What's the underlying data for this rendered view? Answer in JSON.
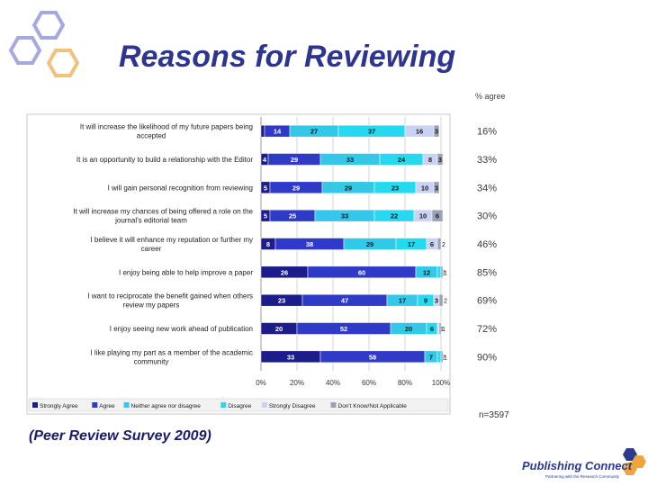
{
  "slide": {
    "title": "Reasons for Reviewing",
    "source": "(Peer Review Survey 2009)",
    "logo_name": "Publishing Connect",
    "logo_tagline": "Partnering with the Research Community"
  },
  "chart_data": {
    "type": "stacked-bar-horizontal",
    "title": "Reasons for Reviewing",
    "agree_header": "% agree",
    "sample_note": "n=3597",
    "x_ticks": [
      "0%",
      "20%",
      "40%",
      "60%",
      "80%",
      "100%"
    ],
    "categories": [
      [
        "It will increase the likelihood of my future papers being",
        "accepted"
      ],
      [
        "It is an opportunity to build a relationship with the Editor"
      ],
      [
        "I will gain personal recognition from reviewing"
      ],
      [
        "It will increase my chances of being offered a role on the",
        "journal's editorial team"
      ],
      [
        "I believe it will enhance my reputation or further my",
        "career"
      ],
      [
        "I enjoy being able to help improve a paper"
      ],
      [
        "I want to reciprocate the benefit gained when others",
        "review my papers"
      ],
      [
        "I enjoy seeing new work ahead of publication"
      ],
      [
        "I like playing my part as a member of the academic",
        "community"
      ]
    ],
    "series": [
      {
        "name": "Strongly Agree",
        "color": "#1c1c8a",
        "text_color": "#ffffff",
        "values": [
          2,
          4,
          5,
          5,
          8,
          26,
          23,
          20,
          33
        ]
      },
      {
        "name": "Agree",
        "color": "#2f3ac6",
        "text_color": "#ffffff",
        "values": [
          14,
          29,
          29,
          25,
          38,
          60,
          47,
          52,
          58
        ]
      },
      {
        "name": "Neither agree nor disagree",
        "color": "#33c7e8",
        "text_color": "#1a1a1a",
        "values": [
          27,
          33,
          29,
          33,
          29,
          12,
          17,
          20,
          7
        ]
      },
      {
        "name": "Disagree",
        "color": "#27d9f0",
        "text_color": "#1a1a1a",
        "values": [
          37,
          24,
          23,
          22,
          17,
          2,
          9,
          6,
          2
        ]
      },
      {
        "name": "Strongly Disagree",
        "color": "#c9d2f2",
        "text_color": "#1a1a1a",
        "values": [
          16,
          8,
          10,
          10,
          6,
          0,
          3,
          1,
          0
        ]
      },
      {
        "name": "Don't Know/Not Applicable",
        "color": "#9aa2b4",
        "text_color": "#1a1a1a",
        "values": [
          3,
          3,
          3,
          6,
          2,
          1,
          2,
          1,
          1
        ]
      }
    ],
    "agree_pct": [
      "16%",
      "33%",
      "34%",
      "30%",
      "46%",
      "85%",
      "69%",
      "72%",
      "90%"
    ]
  }
}
